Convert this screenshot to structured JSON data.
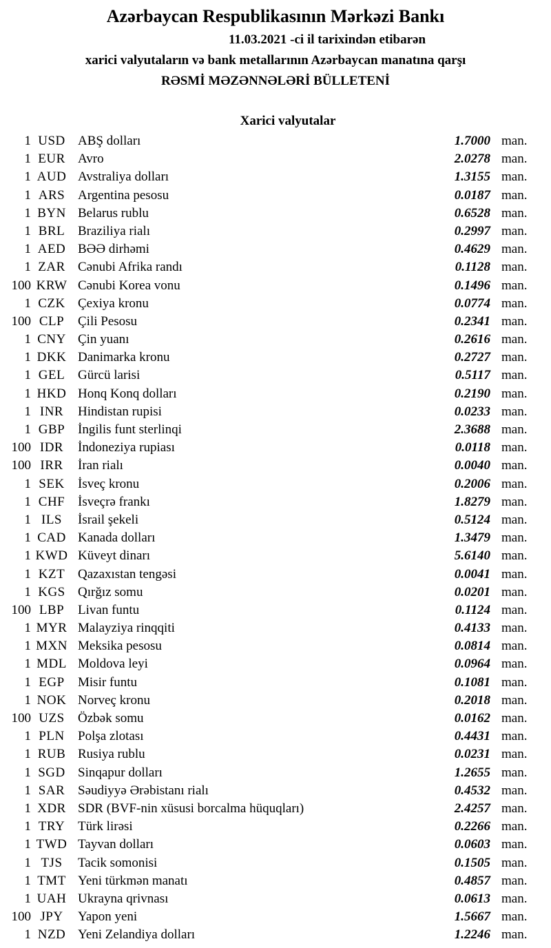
{
  "header": {
    "title": "Azərbaycan Respublikasının Mərkəzi Bankı",
    "date_line": "11.03.2021 -ci il tarixindən etibarən",
    "description_line": "xarici valyutaların və bank metallarının Azərbaycan manatına qarşı",
    "bulletin_title": "RƏSMİ MƏZƏNNƏLƏRİ BÜLLETENİ"
  },
  "section": {
    "title": "Xarici valyutalar"
  },
  "rates": {
    "unit_label": "man.",
    "rows": [
      {
        "qty": "1",
        "code": "USD",
        "name": "ABŞ dolları",
        "rate": "1.7000"
      },
      {
        "qty": "1",
        "code": "EUR",
        "name": "Avro",
        "rate": "2.0278"
      },
      {
        "qty": "1",
        "code": "AUD",
        "name": "Avstraliya dolları",
        "rate": "1.3155"
      },
      {
        "qty": "1",
        "code": "ARS",
        "name": "Argentina pesosu",
        "rate": "0.0187"
      },
      {
        "qty": "1",
        "code": "BYN",
        "name": "Belarus rublu",
        "rate": "0.6528"
      },
      {
        "qty": "1",
        "code": "BRL",
        "name": "Braziliya rialı",
        "rate": "0.2997"
      },
      {
        "qty": "1",
        "code": "AED",
        "name": "BƏƏ dirhəmi",
        "rate": "0.4629"
      },
      {
        "qty": "1",
        "code": "ZAR",
        "name": "Cənubi Afrika randı",
        "rate": "0.1128"
      },
      {
        "qty": "100",
        "code": "KRW",
        "name": "Cənubi Korea vonu",
        "rate": "0.1496"
      },
      {
        "qty": "1",
        "code": "CZK",
        "name": "Çexiya kronu",
        "rate": "0.0774"
      },
      {
        "qty": "100",
        "code": "CLP",
        "name": "Çili Pesosu",
        "rate": "0.2341"
      },
      {
        "qty": "1",
        "code": "CNY",
        "name": "Çin yuanı",
        "rate": "0.2616"
      },
      {
        "qty": "1",
        "code": "DKK",
        "name": "Danimarka kronu",
        "rate": "0.2727"
      },
      {
        "qty": "1",
        "code": "GEL",
        "name": "Gürcü larisi",
        "rate": "0.5117"
      },
      {
        "qty": "1",
        "code": "HKD",
        "name": "Honq Konq dolları",
        "rate": "0.2190"
      },
      {
        "qty": "1",
        "code": "INR",
        "name": "Hindistan rupisi",
        "rate": "0.0233"
      },
      {
        "qty": "1",
        "code": "GBP",
        "name": "İngilis funt sterlinqi",
        "rate": "2.3688"
      },
      {
        "qty": "100",
        "code": "IDR",
        "name": "İndoneziya rupiası",
        "rate": "0.0118"
      },
      {
        "qty": "100",
        "code": "IRR",
        "name": "İran rialı",
        "rate": "0.0040"
      },
      {
        "qty": "1",
        "code": "SEK",
        "name": "İsveç kronu",
        "rate": "0.2006"
      },
      {
        "qty": "1",
        "code": "CHF",
        "name": "İsveçrə frankı",
        "rate": "1.8279"
      },
      {
        "qty": "1",
        "code": "ILS",
        "name": "İsrail şekeli",
        "rate": "0.5124"
      },
      {
        "qty": "1",
        "code": "CAD",
        "name": "Kanada dolları",
        "rate": "1.3479"
      },
      {
        "qty": "1",
        "code": "KWD",
        "name": "Küveyt dinarı",
        "rate": "5.6140"
      },
      {
        "qty": "1",
        "code": "KZT",
        "name": "Qazaxıstan tengəsi",
        "rate": "0.0041"
      },
      {
        "qty": "1",
        "code": "KGS",
        "name": "Qırğız somu",
        "rate": "0.0201"
      },
      {
        "qty": "100",
        "code": "LBP",
        "name": "Livan funtu",
        "rate": "0.1124"
      },
      {
        "qty": "1",
        "code": "MYR",
        "name": "Malayziya rinqqiti",
        "rate": "0.4133"
      },
      {
        "qty": "1",
        "code": "MXN",
        "name": "Meksika pesosu",
        "rate": "0.0814"
      },
      {
        "qty": "1",
        "code": "MDL",
        "name": "Moldova leyi",
        "rate": "0.0964"
      },
      {
        "qty": "1",
        "code": "EGP",
        "name": "Misir funtu",
        "rate": "0.1081"
      },
      {
        "qty": "1",
        "code": "NOK",
        "name": "Norveç kronu",
        "rate": "0.2018"
      },
      {
        "qty": "100",
        "code": "UZS",
        "name": "Özbək somu",
        "rate": "0.0162"
      },
      {
        "qty": "1",
        "code": "PLN",
        "name": "Polşa zlotası",
        "rate": "0.4431"
      },
      {
        "qty": "1",
        "code": "RUB",
        "name": "Rusiya rublu",
        "rate": "0.0231"
      },
      {
        "qty": "1",
        "code": "SGD",
        "name": "Sinqapur dolları",
        "rate": "1.2655"
      },
      {
        "qty": "1",
        "code": "SAR",
        "name": "Səudiyyə Ərəbistanı rialı",
        "rate": "0.4532"
      },
      {
        "qty": "1",
        "code": "XDR",
        "name": "SDR (BVF-nin xüsusi borcalma hüquqları)",
        "rate": "2.4257"
      },
      {
        "qty": "1",
        "code": "TRY",
        "name": "Türk lirəsi",
        "rate": "0.2266"
      },
      {
        "qty": "1",
        "code": "TWD",
        "name": "Tayvan dolları",
        "rate": "0.0603"
      },
      {
        "qty": "1",
        "code": "TJS",
        "name": "Tacik somonisi",
        "rate": "0.1505"
      },
      {
        "qty": "1",
        "code": "TMT",
        "name": "Yeni türkmən manatı",
        "rate": "0.4857"
      },
      {
        "qty": "1",
        "code": "UAH",
        "name": "Ukrayna qrivnası",
        "rate": "0.0613"
      },
      {
        "qty": "100",
        "code": "JPY",
        "name": "Yapon yeni",
        "rate": "1.5667"
      },
      {
        "qty": "1",
        "code": "NZD",
        "name": "Yeni Zelandiya dolları",
        "rate": "1.2246"
      }
    ]
  }
}
